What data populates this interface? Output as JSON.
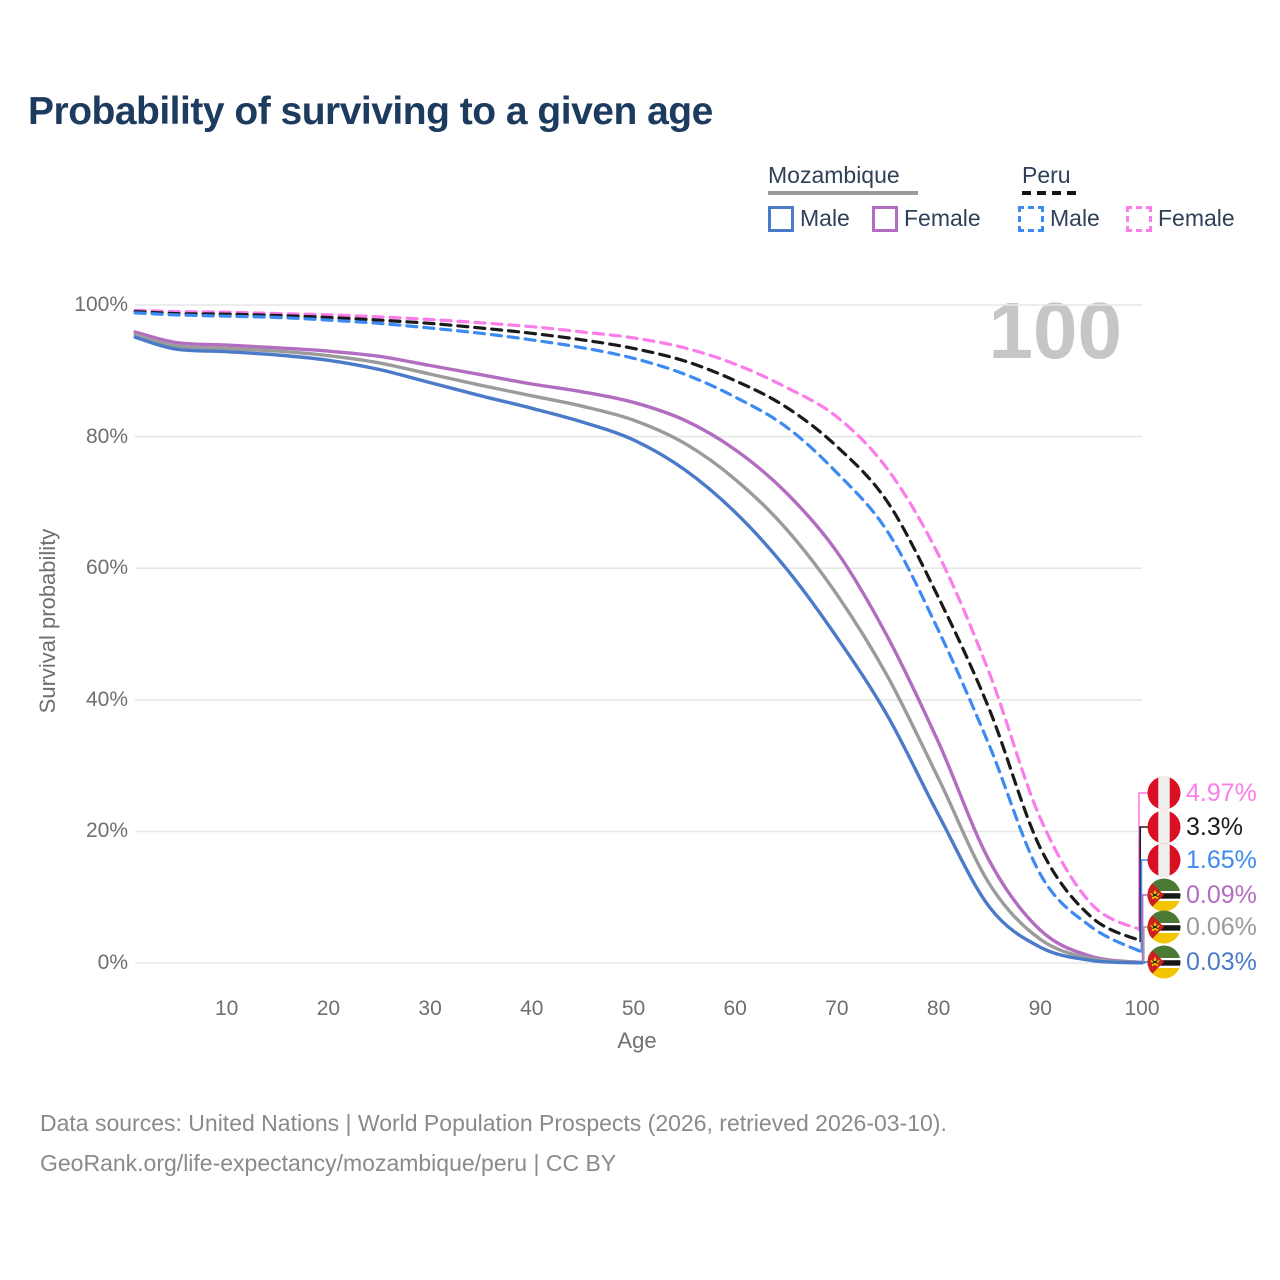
{
  "title": "Probability of surviving to a given age",
  "watermark_age": "100",
  "legend": {
    "groups": [
      {
        "name": "Mozambique",
        "line_style": "solid",
        "line_color": "#9b9b9b",
        "items": [
          {
            "label": "Male",
            "color": "#4b7bc8",
            "style": "solid"
          },
          {
            "label": "Female",
            "color": "#b26dc0",
            "style": "solid"
          }
        ]
      },
      {
        "name": "Peru",
        "line_style": "dashed",
        "line_color": "#141414",
        "items": [
          {
            "label": "Male",
            "color": "#3d8bf2",
            "style": "dashed"
          },
          {
            "label": "Female",
            "color": "#fa7de9",
            "style": "dashed"
          }
        ]
      }
    ]
  },
  "chart_data": {
    "type": "line",
    "title": "Probability of surviving to a given age",
    "xlabel": "Age",
    "ylabel": "Survival probability",
    "xlim": [
      0,
      100
    ],
    "ylim": [
      0,
      100
    ],
    "grid": "horizontal",
    "legend_position": "top-right",
    "x_ticks": [
      10,
      20,
      30,
      40,
      50,
      60,
      70,
      80,
      90,
      100
    ],
    "y_ticks": [
      {
        "label": "0%",
        "value": 0
      },
      {
        "label": "20%",
        "value": 20
      },
      {
        "label": "40%",
        "value": 40
      },
      {
        "label": "60%",
        "value": 60
      },
      {
        "label": "80%",
        "value": 80
      },
      {
        "label": "100%",
        "value": 100
      }
    ],
    "x": [
      1,
      5,
      10,
      15,
      20,
      25,
      30,
      35,
      40,
      45,
      50,
      55,
      60,
      65,
      70,
      75,
      80,
      85,
      90,
      95,
      100
    ],
    "series": [
      {
        "name": "Peru Female",
        "country": "Peru",
        "sex": "Female",
        "flag": "peru",
        "color": "#fa7de9",
        "dash": "dashed",
        "end_label": "4.97%",
        "values": [
          99.2,
          99.0,
          98.9,
          98.7,
          98.5,
          98.2,
          97.8,
          97.3,
          96.7,
          95.9,
          95.0,
          93.5,
          91.0,
          87.5,
          83.0,
          75.0,
          62.0,
          44.0,
          22.0,
          9.0,
          4.97
        ]
      },
      {
        "name": "Peru",
        "country": "Peru",
        "sex": "Both",
        "flag": "peru",
        "color": "#1a1a1a",
        "dash": "dashed",
        "end_label": "3.3%",
        "values": [
          99.0,
          98.7,
          98.6,
          98.4,
          98.1,
          97.7,
          97.2,
          96.5,
          95.7,
          94.7,
          93.4,
          91.5,
          88.5,
          84.5,
          78.5,
          70.0,
          55.5,
          38.5,
          17.5,
          7.0,
          3.3
        ]
      },
      {
        "name": "Peru Male",
        "country": "Peru",
        "sex": "Male",
        "flag": "peru",
        "color": "#3d8bf2",
        "dash": "dashed",
        "end_label": "1.65%",
        "values": [
          98.8,
          98.5,
          98.3,
          98.1,
          97.7,
          97.2,
          96.5,
          95.7,
          94.7,
          93.5,
          91.9,
          89.5,
          86.0,
          81.5,
          74.5,
          65.5,
          50.5,
          33.0,
          13.5,
          5.5,
          1.65
        ]
      },
      {
        "name": "Mozambique Female",
        "country": "Mozambique",
        "sex": "Female",
        "flag": "mozambique",
        "color": "#b26dc0",
        "dash": "solid",
        "end_label": "0.09%",
        "values": [
          95.9,
          94.3,
          93.9,
          93.5,
          93.0,
          92.2,
          90.8,
          89.4,
          88.0,
          86.8,
          85.2,
          82.5,
          78.0,
          71.5,
          62.5,
          49.5,
          33.5,
          15.5,
          5.0,
          1.0,
          0.09
        ]
      },
      {
        "name": "Mozambique",
        "country": "Mozambique",
        "sex": "Both",
        "flag": "mozambique",
        "color": "#9b9b9b",
        "dash": "solid",
        "end_label": "0.06%",
        "values": [
          95.5,
          93.8,
          93.4,
          93.0,
          92.3,
          91.2,
          89.5,
          87.8,
          86.2,
          84.6,
          82.5,
          79.0,
          73.5,
          66.0,
          56.0,
          43.5,
          28.0,
          12.0,
          3.6,
          0.7,
          0.06
        ]
      },
      {
        "name": "Mozambique Male",
        "country": "Mozambique",
        "sex": "Male",
        "flag": "mozambique",
        "color": "#4b7bc8",
        "dash": "solid",
        "end_label": "0.03%",
        "values": [
          95.1,
          93.3,
          92.9,
          92.4,
          91.6,
          90.2,
          88.2,
          86.2,
          84.3,
          82.2,
          79.5,
          75.0,
          68.5,
          60.0,
          49.5,
          37.5,
          22.5,
          8.5,
          2.4,
          0.4,
          0.03
        ]
      }
    ]
  },
  "footer": {
    "line1": "Data sources: United Nations | World Population Prospects (2026, retrieved 2026-03-10).",
    "line2": "GeoRank.org/life-expectancy/mozambique/peru | CC BY"
  },
  "colors": {
    "grid": "#e7e7e7",
    "tick_text": "#6f6f6f",
    "title_text": "#1d3a5f",
    "watermark": "#c6c6c6",
    "footer_text": "#8a8a8a"
  }
}
